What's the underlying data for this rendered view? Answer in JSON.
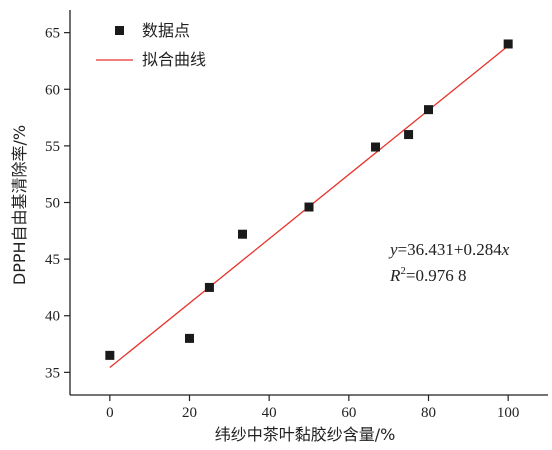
{
  "chart_data": {
    "type": "scatter",
    "xlabel": "纬纱中茶叶黏胶纱含量/%",
    "ylabel": "DPPH自由基清除率/%",
    "xlim": [
      -10,
      110
    ],
    "ylim": [
      33,
      67
    ],
    "xticks": [
      "0",
      "20",
      "40",
      "60",
      "80",
      "100"
    ],
    "yticks": [
      "35",
      "40",
      "45",
      "50",
      "55",
      "60",
      "65"
    ],
    "series": [
      {
        "name": "数据点",
        "x": [
          0,
          20,
          25,
          33.3,
          50,
          66.7,
          75,
          80,
          100
        ],
        "y": [
          36.5,
          38.0,
          42.5,
          47.2,
          49.6,
          54.9,
          56.0,
          58.2,
          64.0
        ]
      }
    ],
    "fit": {
      "name": "拟合曲线",
      "intercept": 36.431,
      "slope": 0.284,
      "x_range": [
        0,
        100
      ],
      "color": "#e8322d"
    },
    "annotation": {
      "equation": {
        "y": "y",
        "rest": "=36.431+0.284",
        "x": "x"
      },
      "r2": {
        "R": "R",
        "sup": "2",
        "value": "=0.976 8"
      }
    },
    "legend_position": "top-left",
    "marker_color": "#1a1a1a"
  }
}
